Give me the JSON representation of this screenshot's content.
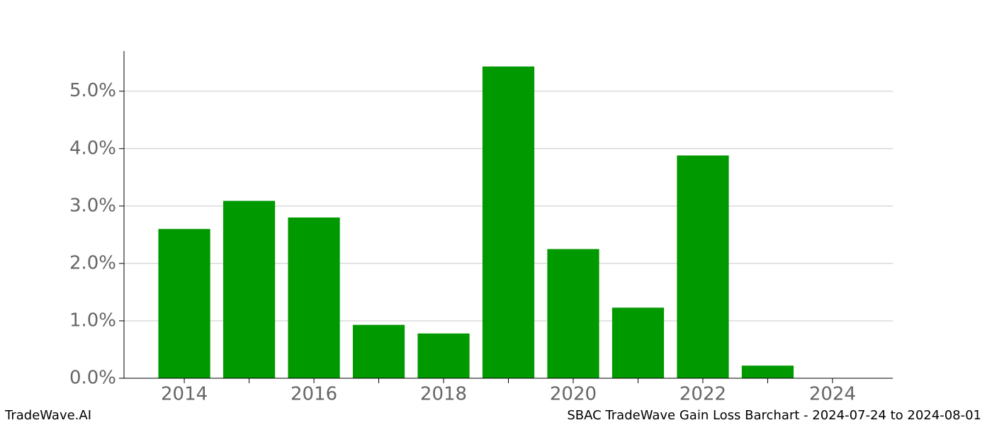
{
  "chart_data": {
    "type": "bar",
    "x": [
      2014,
      2015,
      2016,
      2017,
      2018,
      2019,
      2020,
      2021,
      2022,
      2023
    ],
    "values": [
      2.6,
      3.09,
      2.8,
      0.93,
      0.78,
      5.43,
      2.25,
      1.23,
      3.88,
      0.22
    ],
    "color": "#009900",
    "bar_width": 0.8,
    "xlim": [
      2013.07,
      2024.93
    ],
    "xticks": [
      2014,
      2016,
      2018,
      2020,
      2022,
      2024
    ],
    "xminorticks": [
      2015,
      2017,
      2019,
      2021,
      2023
    ],
    "ylim": [
      0,
      5.7
    ],
    "yticks": [
      {
        "value": 0,
        "label": "0.0%"
      },
      {
        "value": 1,
        "label": "1.0%"
      },
      {
        "value": 2,
        "label": "2.0%"
      },
      {
        "value": 3,
        "label": "3.0%"
      },
      {
        "value": 4,
        "label": "4.0%"
      },
      {
        "value": 5,
        "label": "5.0%"
      }
    ],
    "grid": true
  },
  "footer": {
    "left": "TradeWave.AI",
    "right": "SBAC TradeWave Gain Loss Barchart - 2024-07-24 to 2024-08-01"
  }
}
